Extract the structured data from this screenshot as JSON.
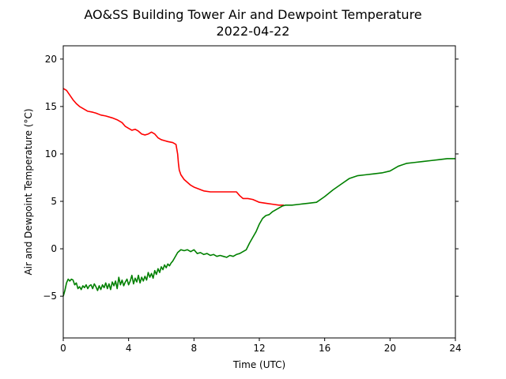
{
  "chart_data": {
    "type": "line",
    "title": [
      "AO&SS Building Tower Air and Dewpoint Temperature",
      "2022-04-22"
    ],
    "xlabel": "Time (UTC)",
    "ylabel": "Air and Dewpoint Temperature (°C)",
    "xlim": [
      0,
      24
    ],
    "ylim": [
      -9.4,
      21.4
    ],
    "xticks": [
      0,
      4,
      8,
      12,
      16,
      20,
      24
    ],
    "yticks": [
      -5,
      0,
      5,
      10,
      15,
      20
    ],
    "grid": false,
    "legend": "none",
    "series": [
      {
        "color": "#ff0000",
        "x": [
          0,
          0.2,
          0.4,
          0.6,
          0.8,
          1.0,
          1.2,
          1.5,
          1.8,
          2.0,
          2.3,
          2.6,
          3.0,
          3.3,
          3.6,
          3.8,
          4.0,
          4.2,
          4.4,
          4.6,
          4.8,
          5.0,
          5.2,
          5.4,
          5.6,
          5.8,
          6.0,
          6.2,
          6.4,
          6.7,
          6.9,
          7.0,
          7.05,
          7.1,
          7.2,
          7.4,
          7.6,
          7.8,
          8.0,
          8.3,
          8.6,
          9.0,
          9.5,
          10.0,
          10.3,
          10.6,
          10.8,
          11.0,
          11.3,
          11.6,
          12.0,
          12.4,
          12.8,
          13.2,
          13.5
        ],
        "y": [
          16.9,
          16.7,
          16.2,
          15.7,
          15.3,
          15.0,
          14.8,
          14.5,
          14.4,
          14.3,
          14.1,
          14.0,
          13.8,
          13.6,
          13.3,
          12.9,
          12.7,
          12.5,
          12.6,
          12.4,
          12.1,
          12.0,
          12.1,
          12.3,
          12.1,
          11.7,
          11.5,
          11.4,
          11.3,
          11.2,
          11.0,
          10.0,
          9.0,
          8.3,
          7.8,
          7.3,
          7.0,
          6.7,
          6.5,
          6.3,
          6.1,
          6.0,
          6.0,
          6.0,
          6.0,
          6.0,
          5.6,
          5.3,
          5.3,
          5.2,
          4.9,
          4.8,
          4.7,
          4.6,
          4.6
        ]
      },
      {
        "color": "#008000",
        "x": [
          0,
          0.1,
          0.2,
          0.3,
          0.4,
          0.5,
          0.6,
          0.7,
          0.8,
          0.9,
          1.0,
          1.1,
          1.2,
          1.3,
          1.4,
          1.5,
          1.6,
          1.7,
          1.8,
          1.9,
          2.0,
          2.1,
          2.2,
          2.3,
          2.4,
          2.5,
          2.6,
          2.7,
          2.8,
          2.9,
          3.0,
          3.1,
          3.2,
          3.3,
          3.4,
          3.5,
          3.6,
          3.7,
          3.8,
          3.9,
          4.0,
          4.1,
          4.2,
          4.3,
          4.4,
          4.5,
          4.6,
          4.7,
          4.8,
          4.9,
          5.0,
          5.1,
          5.2,
          5.3,
          5.4,
          5.5,
          5.6,
          5.7,
          5.8,
          5.9,
          6.0,
          6.1,
          6.2,
          6.3,
          6.4,
          6.5,
          6.6,
          6.7,
          6.8,
          6.9,
          7.0,
          7.2,
          7.4,
          7.6,
          7.8,
          8.0,
          8.2,
          8.4,
          8.6,
          8.8,
          9.0,
          9.2,
          9.4,
          9.6,
          9.8,
          10.0,
          10.2,
          10.4,
          10.6,
          10.8,
          11.0,
          11.2,
          11.4,
          11.6,
          11.8,
          12.0,
          12.2,
          12.4,
          12.6,
          12.8,
          13.0,
          13.2,
          13.4,
          13.6,
          13.8,
          14.0,
          14.5,
          15.0,
          15.5,
          16.0,
          16.5,
          17.0,
          17.5,
          18.0,
          18.5,
          19.0,
          19.5,
          20.0,
          20.5,
          21.0,
          21.5,
          22.0,
          22.5,
          23.0,
          23.5,
          24.0
        ],
        "y": [
          -5.0,
          -4.4,
          -3.6,
          -3.2,
          -3.4,
          -3.2,
          -3.3,
          -3.8,
          -3.6,
          -4.2,
          -4.0,
          -4.3,
          -3.9,
          -4.1,
          -3.8,
          -4.2,
          -3.9,
          -3.8,
          -4.2,
          -3.7,
          -4.0,
          -4.4,
          -3.9,
          -4.3,
          -3.8,
          -4.1,
          -3.6,
          -4.2,
          -3.7,
          -4.3,
          -3.5,
          -3.9,
          -3.4,
          -4.2,
          -3.0,
          -3.8,
          -3.3,
          -3.9,
          -3.5,
          -3.2,
          -3.8,
          -3.4,
          -2.8,
          -3.7,
          -3.1,
          -3.5,
          -2.8,
          -3.6,
          -3.0,
          -3.4,
          -2.9,
          -3.3,
          -2.5,
          -3.0,
          -2.6,
          -3.1,
          -2.3,
          -2.7,
          -2.1,
          -2.5,
          -1.9,
          -2.2,
          -1.7,
          -2.0,
          -1.6,
          -1.8,
          -1.5,
          -1.3,
          -1.0,
          -0.7,
          -0.4,
          -0.1,
          -0.2,
          -0.1,
          -0.3,
          -0.1,
          -0.5,
          -0.4,
          -0.6,
          -0.5,
          -0.7,
          -0.6,
          -0.8,
          -0.7,
          -0.8,
          -0.9,
          -0.7,
          -0.8,
          -0.6,
          -0.5,
          -0.3,
          -0.1,
          0.6,
          1.2,
          1.8,
          2.6,
          3.2,
          3.5,
          3.6,
          3.9,
          4.1,
          4.3,
          4.5,
          4.6,
          4.6,
          4.6,
          4.7,
          4.8,
          4.9,
          5.5,
          6.2,
          6.8,
          7.4,
          7.7,
          7.8,
          7.9,
          8.0,
          8.2,
          8.7,
          9.0,
          9.1,
          9.2,
          9.3,
          9.4,
          9.5,
          9.5
        ]
      }
    ]
  }
}
